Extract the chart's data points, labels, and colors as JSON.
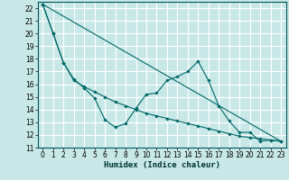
{
  "title": "",
  "xlabel": "Humidex (Indice chaleur)",
  "ylabel": "",
  "background_color": "#c8e8e8",
  "grid_color": "#ffffff",
  "line_color": "#006666",
  "xlim": [
    -0.5,
    23.5
  ],
  "ylim": [
    11,
    22.5
  ],
  "yticks": [
    11,
    12,
    13,
    14,
    15,
    16,
    17,
    18,
    19,
    20,
    21,
    22
  ],
  "xticks": [
    0,
    1,
    2,
    3,
    4,
    5,
    6,
    7,
    8,
    9,
    10,
    11,
    12,
    13,
    14,
    15,
    16,
    17,
    18,
    19,
    20,
    21,
    22,
    23
  ],
  "series": [
    {
      "x": [
        0,
        1,
        2,
        3,
        4,
        5,
        6,
        7,
        8,
        9,
        10,
        11,
        12,
        13,
        14,
        15,
        16,
        17,
        18,
        19,
        20,
        21,
        22,
        23
      ],
      "y": [
        22.3,
        20.0,
        17.7,
        16.4,
        15.7,
        14.9,
        13.2,
        12.6,
        12.9,
        14.1,
        15.2,
        15.3,
        16.3,
        16.6,
        17.0,
        17.8,
        16.3,
        14.3,
        13.1,
        12.2,
        12.2,
        11.5,
        11.6,
        11.5
      ]
    },
    {
      "x": [
        0,
        1,
        2,
        3,
        4,
        5,
        6,
        7,
        8,
        9,
        10,
        11,
        12,
        13,
        14,
        15,
        16,
        17,
        18,
        19,
        20,
        21,
        22,
        23
      ],
      "y": [
        22.3,
        20.0,
        17.7,
        16.3,
        15.8,
        15.4,
        15.0,
        14.6,
        14.3,
        14.0,
        13.7,
        13.5,
        13.3,
        13.1,
        12.9,
        12.7,
        12.5,
        12.3,
        12.1,
        11.9,
        11.8,
        11.7,
        11.6,
        11.5
      ]
    },
    {
      "x": [
        0,
        23
      ],
      "y": [
        22.3,
        11.5
      ]
    }
  ]
}
